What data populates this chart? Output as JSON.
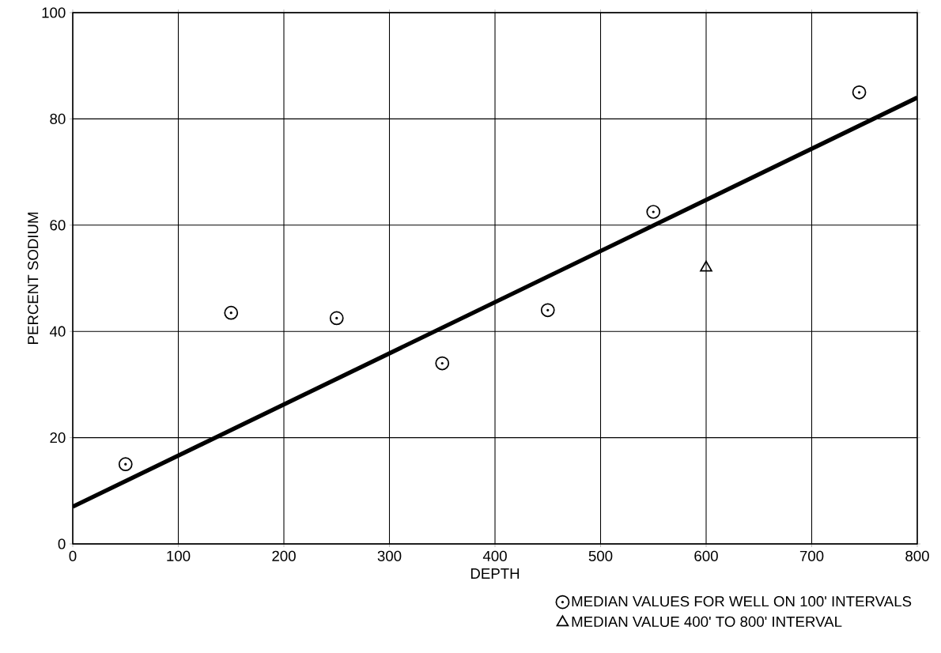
{
  "chart_data": {
    "type": "scatter",
    "xlabel": "DEPTH",
    "ylabel": "PERCENT SODIUM",
    "xlim": [
      0,
      800
    ],
    "xticks": [
      0,
      100,
      200,
      300,
      400,
      500,
      600,
      700,
      800
    ],
    "ylim": [
      0,
      100
    ],
    "yticks": [
      0,
      20,
      40,
      60,
      80,
      100
    ],
    "grid": true,
    "legend": "bottom right",
    "series": [
      {
        "name": "MEDIAN VALUES FOR WELL ON 100' INTERVALS",
        "color": "#000000",
        "marker": "circle",
        "x": [
          50,
          150,
          250,
          350,
          450,
          550,
          745
        ],
        "values": [
          15,
          43.5,
          42.5,
          34,
          44,
          62.5,
          85
        ]
      },
      {
        "name": "MEDIAN VALUE 400' TO 800' INTERVAL",
        "color": "#000000",
        "marker": "triangle",
        "x": [
          600
        ],
        "values": [
          52
        ]
      },
      {
        "type": "line",
        "color": "#000000",
        "line_style": "solid",
        "x": [
          0,
          800
        ],
        "values": [
          7,
          84
        ]
      }
    ]
  }
}
